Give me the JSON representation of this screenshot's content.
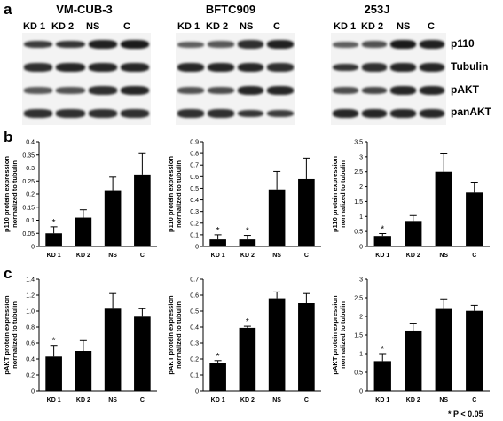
{
  "panels": {
    "a": "a",
    "b": "b",
    "c": "c"
  },
  "cell_lines": [
    {
      "title": "VM-CUB-3",
      "lanes": [
        "KD 1",
        "KD 2",
        "NS",
        "C"
      ]
    },
    {
      "title": "BFTC909",
      "lanes": [
        "KD 1",
        "KD 2",
        "NS",
        "C"
      ]
    },
    {
      "title": "253J",
      "lanes": [
        "KD 1",
        "KD 2",
        "NS",
        "C"
      ]
    }
  ],
  "proteins": [
    "p110",
    "Tubulin",
    "pAKT",
    "panAKT"
  ],
  "footnote": "* P < 0.05",
  "chart_data": [
    {
      "type": "bar",
      "id": "b1",
      "categories": [
        "KD 1",
        "KD 2",
        "NS",
        "C"
      ],
      "values": [
        0.05,
        0.11,
        0.215,
        0.275
      ],
      "errors": [
        0.025,
        0.03,
        0.05,
        0.08
      ],
      "significant": [
        true,
        false,
        false,
        false
      ],
      "ylabel": "p110 protein expression normalized to tubulin",
      "ylim": [
        0,
        0.4
      ],
      "yticks": [
        "0",
        "0.05",
        "0.1",
        "0.15",
        "0.2",
        "0.25",
        "0.3",
        "0.35",
        "0.4"
      ]
    },
    {
      "type": "bar",
      "id": "b2",
      "categories": [
        "KD 1",
        "KD 2",
        "NS",
        "C"
      ],
      "values": [
        0.06,
        0.06,
        0.49,
        0.58
      ],
      "errors": [
        0.04,
        0.035,
        0.155,
        0.18
      ],
      "significant": [
        true,
        true,
        false,
        false
      ],
      "ylabel": "p110 protein expression normalized to tubulin",
      "ylim": [
        0,
        0.9
      ],
      "yticks": [
        "0",
        "0.1",
        "0.2",
        "0.3",
        "0.4",
        "0.5",
        "0.6",
        "0.7",
        "0.8",
        "0.9"
      ]
    },
    {
      "type": "bar",
      "id": "b3",
      "categories": [
        "KD 1",
        "KD 2",
        "NS",
        "C"
      ],
      "values": [
        0.35,
        0.85,
        2.5,
        1.8
      ],
      "errors": [
        0.08,
        0.18,
        0.6,
        0.35
      ],
      "significant": [
        true,
        false,
        false,
        false
      ],
      "ylabel": "p110 protein expression normalized to tubulin",
      "ylim": [
        0,
        3.5
      ],
      "yticks": [
        "0",
        "0.5",
        "1",
        "1.5",
        "2",
        "2.5",
        "3",
        "3.5"
      ]
    },
    {
      "type": "bar",
      "id": "c1",
      "categories": [
        "KD 1",
        "KD 2",
        "NS",
        "C"
      ],
      "values": [
        0.43,
        0.5,
        1.03,
        0.93
      ],
      "errors": [
        0.14,
        0.13,
        0.19,
        0.1
      ],
      "significant": [
        true,
        false,
        false,
        false
      ],
      "ylabel": "pAKT protein expression normalized to tubulin",
      "ylim": [
        0,
        1.4
      ],
      "yticks": [
        "0",
        "0.2",
        "0.4",
        "0.6",
        "0.8",
        "1.0",
        "1.2",
        "1.4"
      ]
    },
    {
      "type": "bar",
      "id": "c2",
      "categories": [
        "KD 1",
        "KD 2",
        "NS",
        "C"
      ],
      "values": [
        0.175,
        0.395,
        0.58,
        0.55
      ],
      "errors": [
        0.015,
        0.01,
        0.04,
        0.06
      ],
      "significant": [
        true,
        true,
        false,
        false
      ],
      "ylabel": "pAKT protein expression normalized to tubulin",
      "ylim": [
        0,
        0.7
      ],
      "yticks": [
        "0",
        "0.1",
        "0.2",
        "0.3",
        "0.4",
        "0.5",
        "0.6",
        "0.7"
      ]
    },
    {
      "type": "bar",
      "id": "c3",
      "categories": [
        "KD 1",
        "KD 2",
        "NS",
        "C"
      ],
      "values": [
        0.8,
        1.62,
        2.2,
        2.15
      ],
      "errors": [
        0.2,
        0.2,
        0.27,
        0.15
      ],
      "significant": [
        true,
        false,
        false,
        false
      ],
      "ylabel": "pAKT protein expression normalized to tubulin",
      "ylim": [
        0,
        3
      ],
      "yticks": [
        "0",
        "0.5",
        "1",
        "1.5",
        "2",
        "2.5",
        "3"
      ]
    }
  ],
  "blot_intensity": [
    [
      [
        0.75,
        0.8,
        0.95,
        1.0
      ],
      [
        0.85,
        0.9,
        0.9,
        0.9
      ],
      [
        0.55,
        0.6,
        0.85,
        0.9
      ],
      [
        0.85,
        0.85,
        0.85,
        0.85
      ]
    ],
    [
      [
        0.5,
        0.55,
        0.85,
        0.95
      ],
      [
        0.9,
        0.9,
        0.9,
        0.85
      ],
      [
        0.6,
        0.65,
        0.9,
        0.9
      ],
      [
        0.85,
        0.85,
        0.8,
        0.75
      ]
    ],
    [
      [
        0.5,
        0.6,
        1.0,
        0.95
      ],
      [
        0.8,
        0.85,
        0.9,
        0.9
      ],
      [
        0.65,
        0.7,
        0.9,
        0.9
      ],
      [
        0.9,
        0.9,
        0.9,
        0.9
      ]
    ]
  ]
}
